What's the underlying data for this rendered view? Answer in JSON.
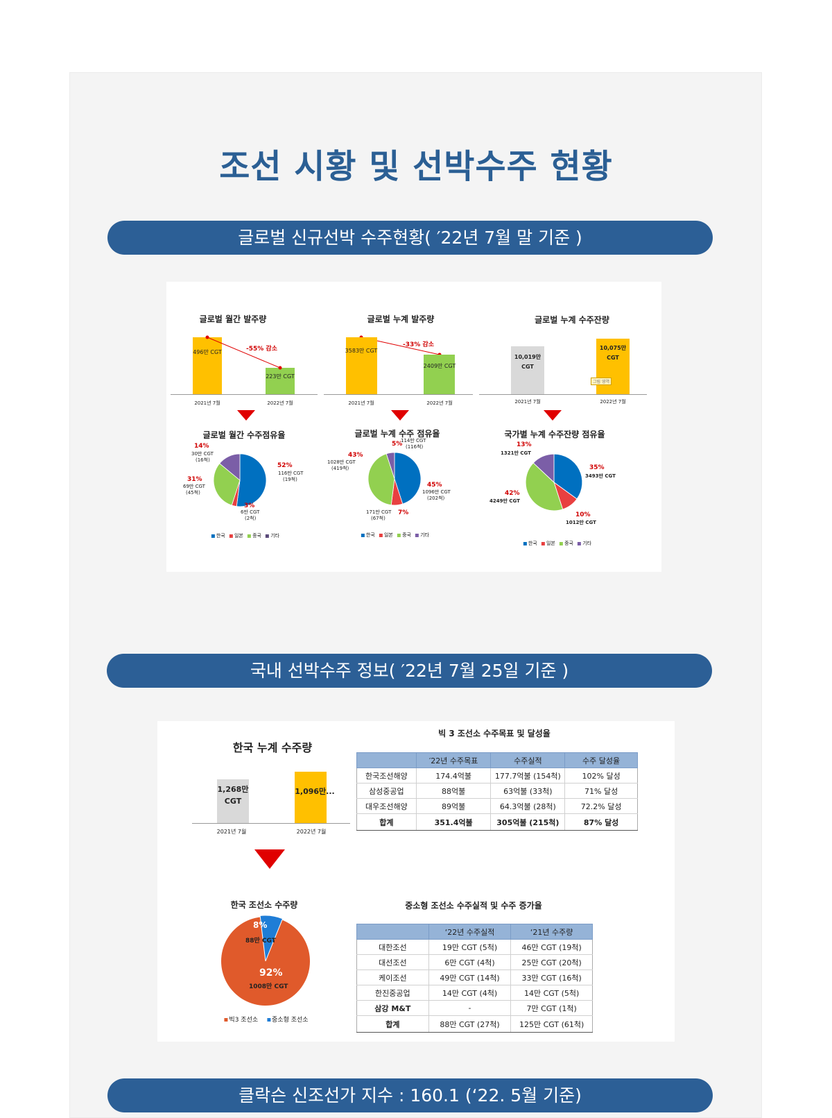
{
  "page": {
    "title": "조선 시황 및 선박수주 현황",
    "section1": "글로벌 신규선박 수주현황( ′22년 7월 말 기준 )",
    "section2": "국내 선박수주 정보( ′22년 7월 25일 기준 )",
    "section3": "클락슨 신조선가 지수 : 160.1 (‘22. 5월 기준)"
  },
  "global": {
    "monthly_orders": {
      "title": "글로벌  월간 발주량",
      "bar_2021_label": "496만 CGT",
      "bar_2022_label": "223만 CGT",
      "change": "-55% 감소",
      "x1": "2021년 7월",
      "x2": "2022년 7월"
    },
    "cumulative_orders": {
      "title": "글로벌  누계 발주량",
      "bar_2021_label": "3583만 CGT",
      "bar_2022_label": "2409만 CGT",
      "change": "-33% 감소",
      "x1": "2021년 7월",
      "x2": "2022년 7월"
    },
    "backlog": {
      "title": "글로벌 누계 수주잔량",
      "bar_2021_line1": "10,019만",
      "bar_2021_line2": "CGT",
      "bar_2022_line1": "10,075만",
      "bar_2022_line2": "CGT",
      "tag": "그림 영역",
      "x1": "2021년 7월",
      "x2": "2022년 7월"
    },
    "pie_monthly": {
      "title": "글로벌 월간 수주점유율",
      "korea_pct": "52%",
      "korea_lbl1": "116만 CGT",
      "korea_lbl2": "(19척)",
      "japan_pct": "3%",
      "japan_lbl1": "6만 CGT",
      "japan_lbl2": "(2척)",
      "china_pct": "31%",
      "china_lbl1": "69만 CGT",
      "china_lbl2": "(45척)",
      "other_pct": "14%",
      "other_lbl1": "30만 CGT",
      "other_lbl2": "(16척)"
    },
    "pie_cumulative": {
      "title": "글로벌 누계 수주 점유율",
      "korea_pct": "45%",
      "korea_lbl1": "1096만 CGT",
      "korea_lbl2": "(202척)",
      "japan_pct": "7%",
      "japan_lbl1": "171만 CGT",
      "japan_lbl2": "(67척)",
      "china_pct": "43%",
      "china_lbl1": "1028만 CGT",
      "china_lbl2": "(419척)",
      "other_pct": "5%",
      "other_lbl1": "114만 CGT",
      "other_lbl2": "(116척)"
    },
    "pie_backlog": {
      "title": "국가별 누계 수주잔량 점유율",
      "korea_pct": "35%",
      "korea_lbl": "3493만 CGT",
      "japan_pct": "10%",
      "japan_lbl": "1012만 CGT",
      "china_pct": "42%",
      "china_lbl": "4249만 CGT",
      "other_pct": "13%",
      "other_lbl": "1321만 CGT"
    },
    "legend": {
      "korea": "한국",
      "japan": "일본",
      "china": "중국",
      "other": "기타"
    }
  },
  "domestic": {
    "korea_cumulative": {
      "title": "한국 누계 수주량",
      "bar_2021_line1": "1,268만",
      "bar_2021_line2": "CGT",
      "bar_2022_label": "1,096만...",
      "x1": "2021년 7월",
      "x2": "2022년 7월"
    },
    "korea_pie": {
      "title": "한국 조선소 수주량",
      "small_pct": "8%",
      "small_lbl": "88만 CGT",
      "big_pct": "92%",
      "big_lbl": "1008만 CGT",
      "legend_big3": "빅3 조선소",
      "legend_small": "중소형 조선소"
    },
    "big3_table": {
      "title": "빅 3 조선소 수주목표 및 달성율",
      "headers": [
        "",
        "′22년 수주목표",
        "수주실적",
        "수주 달성율"
      ],
      "rows": [
        [
          "한국조선해양",
          "174.4억불",
          "177.7억불 (154척)",
          "102% 달성"
        ],
        [
          "삼성중공업",
          "88억불",
          "63억불 (33척)",
          "71% 달성"
        ],
        [
          "대우조선해양",
          "89억불",
          "64.3억불 (28척)",
          "72.2% 달성"
        ]
      ],
      "total": [
        "합계",
        "351.4억불",
        "305억불 (215척)",
        "87% 달성"
      ]
    },
    "small_table": {
      "title": "중소형 조선소 수주실적 및 수주 증가율",
      "headers": [
        "",
        "‘22년 수주실적",
        "‘21년 수주량"
      ],
      "rows": [
        [
          "대한조선",
          "19만 CGT (5척)",
          "46만 CGT (19척)"
        ],
        [
          "대선조선",
          "6만 CGT (4척)",
          "25만 CGT (20척)"
        ],
        [
          "케이조선",
          "49만 CGT (14척)",
          "33만 CGT (16척)"
        ],
        [
          "한진중공업",
          "14만 CGT (4척)",
          "14만 CGT (5척)"
        ],
        [
          "삼강 M&T",
          "-",
          "7만 CGT (1척)"
        ]
      ],
      "total": [
        "합계",
        "88만 CGT (27척)",
        "125만 CGT (61척)"
      ]
    }
  },
  "colors": {
    "accent": "#2c5f96",
    "korea": "#0070c0",
    "japan": "#e84040",
    "china": "#92d050",
    "other": "#7b5ea7",
    "bar_2021_yellow": "#ffc000",
    "bar_2022_green": "#92d050",
    "bar_grey": "#d9d9d9",
    "big3": "#e05a2b",
    "small": "#1f7dd6"
  }
}
